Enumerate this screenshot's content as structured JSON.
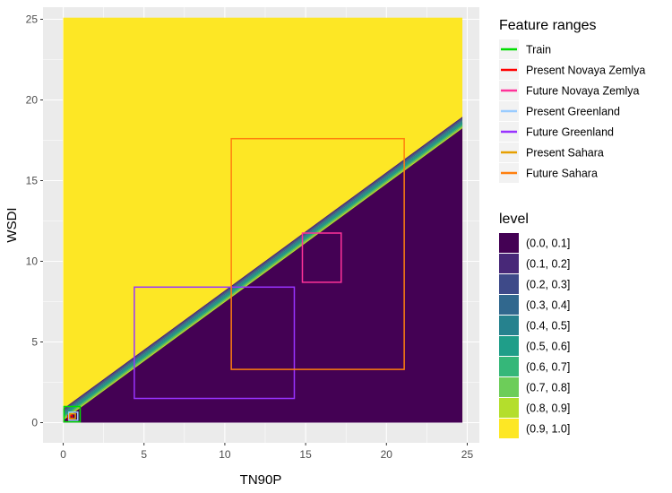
{
  "chart_data": {
    "type": "contour-with-boxes",
    "xlabel": "TN90P",
    "ylabel": "WSDI",
    "xlim": [
      -1.25,
      25.75
    ],
    "ylim": [
      -1.25,
      25.75
    ],
    "x_ticks": [
      0,
      5,
      10,
      15,
      20,
      25
    ],
    "y_ticks": [
      0,
      5,
      10,
      15,
      20,
      25
    ],
    "field_extent": {
      "x": [
        0,
        24.7
      ],
      "y": [
        0,
        25.1
      ]
    },
    "boundary": {
      "x": [
        0,
        24.7
      ],
      "y": [
        0.5,
        18.6
      ],
      "band_width": 0.9
    },
    "level_legend": {
      "title": "level",
      "entries": [
        {
          "label": "(0.0, 0.1]",
          "color": "#440154"
        },
        {
          "label": "(0.1, 0.2]",
          "color": "#482878"
        },
        {
          "label": "(0.2, 0.3]",
          "color": "#3E4A89"
        },
        {
          "label": "(0.3, 0.4]",
          "color": "#31688E"
        },
        {
          "label": "(0.4, 0.5]",
          "color": "#26828E"
        },
        {
          "label": "(0.5, 0.6]",
          "color": "#1F9E89"
        },
        {
          "label": "(0.6, 0.7]",
          "color": "#35B779"
        },
        {
          "label": "(0.7, 0.8]",
          "color": "#6DCD59"
        },
        {
          "label": "(0.8, 0.9]",
          "color": "#B4DE2C"
        },
        {
          "label": "(0.9, 1.0]",
          "color": "#FDE725"
        }
      ]
    },
    "range_legend": {
      "title": "Feature ranges",
      "entries": [
        {
          "label": "Train",
          "color": "#00DD00",
          "xrange": [
            0.05,
            1.05
          ],
          "yrange": [
            0.05,
            1.0
          ]
        },
        {
          "label": "Present Novaya Zemlya",
          "color": "#FF0000",
          "xrange": [
            0.3,
            0.55
          ],
          "yrange": [
            0.2,
            0.45
          ]
        },
        {
          "label": "Future Novaya Zemlya",
          "color": "#FF3399",
          "xrange": [
            14.8,
            17.2
          ],
          "yrange": [
            8.7,
            11.75
          ]
        },
        {
          "label": "Present Greenland",
          "color": "#99CCFF",
          "xrange": [
            0.35,
            0.9
          ],
          "yrange": [
            0.15,
            0.65
          ]
        },
        {
          "label": "Future Greenland",
          "color": "#9933FF",
          "xrange": [
            4.4,
            14.3
          ],
          "yrange": [
            1.5,
            8.4
          ]
        },
        {
          "label": "Present Sahara",
          "color": "#E69F00",
          "xrange": [
            0.4,
            0.75
          ],
          "yrange": [
            0.25,
            0.55
          ]
        },
        {
          "label": "Future Sahara",
          "color": "#FF7F0E",
          "xrange": [
            10.4,
            21.1
          ],
          "yrange": [
            3.3,
            17.6
          ]
        }
      ]
    }
  }
}
